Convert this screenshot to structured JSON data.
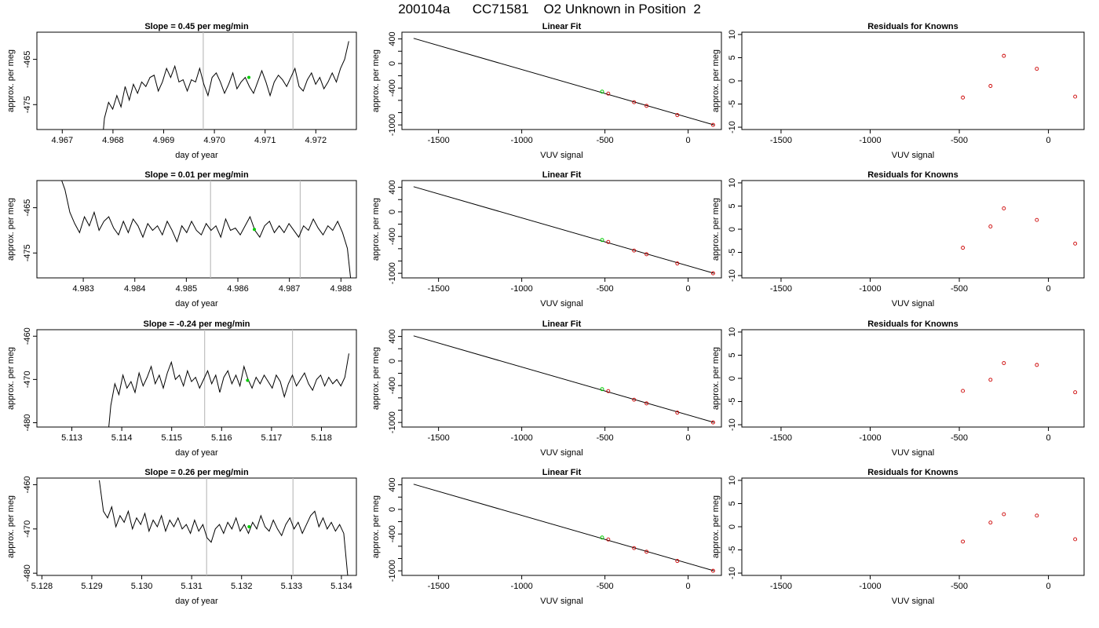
{
  "figure": {
    "title": "200104a      CC71581    O2 Unknown in Position  2"
  },
  "panel_titles": {
    "linear_fit": "Linear Fit",
    "residuals": "Residuals for Knowns"
  },
  "axis_labels": {
    "time_x": "day of year",
    "per_meg_y": "approx. per meg",
    "vuv_x": "VUV signal"
  },
  "colors": {
    "trace": "#000000",
    "guide_lines": "#bebebe",
    "unknown_point": "#00cc00",
    "known_points": "#cc0000"
  },
  "chart_data": [
    {
      "type": "line",
      "row": 1,
      "panel": "time_series",
      "title": "Slope =  0.45  per meg/min",
      "xlabel": "day of year",
      "ylabel": "approx. per meg",
      "xlim": [
        4.9665,
        4.9728
      ],
      "ylim": [
        -480.5,
        -459.0
      ],
      "xticks": [
        4.967,
        4.968,
        4.969,
        4.97,
        4.971,
        4.972
      ],
      "yticks": [
        -475,
        -465
      ],
      "xticklabels": [
        "4.967",
        "4.968",
        "4.969",
        "4.970",
        "4.971",
        "4.972"
      ],
      "yticklabels": [
        "-475",
        "-465"
      ],
      "vlines": [
        4.96978,
        4.97155
      ],
      "trace_x_range": [
        4.96775,
        4.97265
      ],
      "trace_y_values": [
        -488.0,
        -478.0,
        -474.5,
        -476.0,
        -473.0,
        -475.5,
        -471.0,
        -474.0,
        -470.5,
        -472.5,
        -470.0,
        -471.0,
        -469.0,
        -468.5,
        -472.0,
        -470.0,
        -467.0,
        -469.0,
        -466.5,
        -470.0,
        -469.5,
        -472.0,
        -469.5,
        -470.0,
        -467.0,
        -470.5,
        -473.0,
        -469.0,
        -468.0,
        -470.0,
        -472.5,
        -470.5,
        -468.0,
        -471.5,
        -470.0,
        -469.0,
        -471.0,
        -472.5,
        -470.0,
        -467.5,
        -470.0,
        -473.0,
        -470.0,
        -468.5,
        -469.5,
        -471.0,
        -469.0,
        -467.0,
        -471.0,
        -472.0,
        -469.5,
        -468.0,
        -470.5,
        -469.0,
        -471.5,
        -470.0,
        -468.0,
        -470.0,
        -467.0,
        -465.0,
        -461.0
      ],
      "unknown_point": {
        "x": 4.97068,
        "y": -469.0
      }
    },
    {
      "type": "scatter",
      "row": 1,
      "panel": "linear_fit",
      "title": "Linear Fit",
      "xlabel": "VUV signal",
      "ylabel": "approx. per meg",
      "xlim": [
        -1720,
        200
      ],
      "ylim": [
        -1075,
        510
      ],
      "xticks": [
        -1500,
        -1000,
        -500,
        0
      ],
      "yticks": [
        -1000,
        -800,
        -600,
        -400,
        -200,
        0,
        200,
        400
      ],
      "xticklabels": [
        "-1500",
        "-1000",
        "-500",
        "0"
      ],
      "yticklabels": [
        "-1000",
        "",
        "",
        "-400",
        "",
        "0",
        "",
        "400"
      ],
      "fit_line": {
        "x": [
          -1650,
          155
        ],
        "y": [
          410,
          -1000
        ]
      },
      "knowns": {
        "x": [
          -480,
          -325,
          -250,
          -65,
          150
        ],
        "y": [
          -490,
          -630,
          -690,
          -840,
          -1000
        ]
      },
      "unknown": {
        "x": -517,
        "y": -458
      }
    },
    {
      "type": "scatter",
      "row": 1,
      "panel": "residuals",
      "title": "Residuals for Knowns",
      "xlabel": "VUV signal",
      "ylabel": "approx. per meg",
      "xlim": [
        -1720,
        200
      ],
      "ylim": [
        -10.5,
        10.5
      ],
      "xticks": [
        -1500,
        -1000,
        -500,
        0
      ],
      "yticks": [
        -10,
        -5,
        0,
        5,
        10
      ],
      "xticklabels": [
        "-1500",
        "-1000",
        "-500",
        "0"
      ],
      "yticklabels": [
        "-10",
        "-5",
        "0",
        "5",
        "10"
      ],
      "points": {
        "x": [
          -480,
          -325,
          -250,
          -65,
          150
        ],
        "y": [
          -3.6,
          -1.1,
          5.4,
          2.6,
          -3.4
        ]
      }
    },
    {
      "type": "line",
      "row": 2,
      "panel": "time_series",
      "title": "Slope =  0.01  per meg/min",
      "xlabel": "day of year",
      "ylabel": "approx. per meg",
      "xlim": [
        4.9821,
        4.9883
      ],
      "ylim": [
        -480.5,
        -459.0
      ],
      "xticks": [
        4.983,
        4.984,
        4.985,
        4.986,
        4.987,
        4.988
      ],
      "yticks": [
        -475,
        -465
      ],
      "xticklabels": [
        "4.983",
        "4.984",
        "4.985",
        "4.986",
        "4.987",
        "4.988"
      ],
      "yticklabels": [
        "-475",
        "-465"
      ],
      "vlines": [
        4.98547,
        4.98721
      ],
      "trace_x_range": [
        4.98255,
        4.98822
      ],
      "trace_y_values": [
        -458.0,
        -461.0,
        -466.0,
        -468.5,
        -470.5,
        -467.0,
        -469.0,
        -466.0,
        -470.0,
        -468.0,
        -467.0,
        -469.5,
        -471.0,
        -468.0,
        -470.5,
        -467.5,
        -469.0,
        -471.5,
        -468.5,
        -470.0,
        -469.0,
        -471.0,
        -468.0,
        -470.0,
        -472.5,
        -469.0,
        -470.5,
        -468.0,
        -470.0,
        -471.0,
        -468.5,
        -470.0,
        -469.0,
        -471.5,
        -467.5,
        -470.0,
        -469.5,
        -471.0,
        -469.0,
        -467.0,
        -470.0,
        -471.5,
        -469.0,
        -468.0,
        -470.5,
        -469.0,
        -470.5,
        -468.5,
        -470.0,
        -471.5,
        -469.0,
        -470.0,
        -467.5,
        -469.5,
        -471.0,
        -469.0,
        -470.0,
        -468.0,
        -470.5,
        -474.0,
        -484.0
      ],
      "unknown_point": {
        "x": 4.98632,
        "y": -469.8
      }
    },
    {
      "type": "scatter",
      "row": 2,
      "panel": "linear_fit",
      "title": "Linear Fit",
      "xlabel": "VUV signal",
      "ylabel": "approx. per meg",
      "xlim": [
        -1720,
        200
      ],
      "ylim": [
        -1075,
        510
      ],
      "xticks": [
        -1500,
        -1000,
        -500,
        0
      ],
      "yticks": [
        -1000,
        -800,
        -600,
        -400,
        -200,
        0,
        200,
        400
      ],
      "xticklabels": [
        "-1500",
        "-1000",
        "-500",
        "0"
      ],
      "yticklabels": [
        "-1000",
        "",
        "",
        "-400",
        "",
        "0",
        "",
        "400"
      ],
      "fit_line": {
        "x": [
          -1650,
          155
        ],
        "y": [
          410,
          -1000
        ]
      },
      "knowns": {
        "x": [
          -480,
          -325,
          -250,
          -65,
          150
        ],
        "y": [
          -490,
          -630,
          -690,
          -840,
          -1000
        ]
      },
      "unknown": {
        "x": -517,
        "y": -458
      }
    },
    {
      "type": "scatter",
      "row": 2,
      "panel": "residuals",
      "title": "Residuals for Knowns",
      "xlabel": "VUV signal",
      "ylabel": "approx. per meg",
      "xlim": [
        -1720,
        200
      ],
      "ylim": [
        -10.5,
        10.5
      ],
      "xticks": [
        -1500,
        -1000,
        -500,
        0
      ],
      "yticks": [
        -10,
        -5,
        0,
        5,
        10
      ],
      "xticklabels": [
        "-1500",
        "-1000",
        "-500",
        "0"
      ],
      "yticklabels": [
        "-10",
        "-5",
        "0",
        "5",
        "10"
      ],
      "points": {
        "x": [
          -480,
          -325,
          -250,
          -65,
          150
        ],
        "y": [
          -4.0,
          0.6,
          4.5,
          2.0,
          -3.1
        ]
      }
    },
    {
      "type": "line",
      "row": 3,
      "panel": "time_series",
      "title": "Slope =  -0.24  per meg/min",
      "xlabel": "day of year",
      "ylabel": "approx. per meg",
      "xlim": [
        5.1123,
        5.1187
      ],
      "ylim": [
        -481.0,
        -458.5
      ],
      "xticks": [
        5.113,
        5.114,
        5.115,
        5.116,
        5.117,
        5.118
      ],
      "yticks": [
        -480,
        -470,
        -460
      ],
      "xticklabels": [
        "5.113",
        "5.114",
        "5.115",
        "5.116",
        "5.117",
        "5.118"
      ],
      "yticklabels": [
        "-480",
        "-470",
        "-460"
      ],
      "vlines": [
        5.11566,
        5.11742
      ],
      "trace_x_range": [
        5.1137,
        5.11855
      ],
      "trace_y_values": [
        -486.0,
        -476.0,
        -471.0,
        -473.5,
        -469.0,
        -472.0,
        -470.5,
        -473.0,
        -468.5,
        -471.5,
        -469.5,
        -467.0,
        -471.0,
        -469.0,
        -472.0,
        -468.5,
        -466.0,
        -470.0,
        -469.0,
        -471.5,
        -468.0,
        -470.5,
        -469.5,
        -472.0,
        -470.0,
        -468.0,
        -471.0,
        -469.0,
        -473.0,
        -469.5,
        -468.0,
        -471.0,
        -469.0,
        -471.5,
        -467.0,
        -470.0,
        -472.0,
        -469.5,
        -471.0,
        -469.0,
        -470.5,
        -472.0,
        -469.0,
        -470.5,
        -474.0,
        -471.0,
        -469.0,
        -471.5,
        -470.0,
        -468.5,
        -471.0,
        -472.5,
        -470.0,
        -469.0,
        -471.5,
        -469.5,
        -471.0,
        -470.0,
        -471.5,
        -469.5,
        -464.0
      ],
      "unknown_point": {
        "x": 5.11652,
        "y": -470.2
      }
    },
    {
      "type": "scatter",
      "row": 3,
      "panel": "linear_fit",
      "title": "Linear Fit",
      "xlabel": "VUV signal",
      "ylabel": "approx. per meg",
      "xlim": [
        -1720,
        200
      ],
      "ylim": [
        -1075,
        510
      ],
      "xticks": [
        -1500,
        -1000,
        -500,
        0
      ],
      "yticks": [
        -1000,
        -800,
        -600,
        -400,
        -200,
        0,
        200,
        400
      ],
      "xticklabels": [
        "-1500",
        "-1000",
        "-500",
        "0"
      ],
      "yticklabels": [
        "-1000",
        "",
        "",
        "-400",
        "",
        "0",
        "",
        "400"
      ],
      "fit_line": {
        "x": [
          -1650,
          155
        ],
        "y": [
          410,
          -1000
        ]
      },
      "knowns": {
        "x": [
          -480,
          -325,
          -250,
          -65,
          150
        ],
        "y": [
          -490,
          -630,
          -690,
          -840,
          -1000
        ]
      },
      "unknown": {
        "x": -517,
        "y": -458
      }
    },
    {
      "type": "scatter",
      "row": 3,
      "panel": "residuals",
      "title": "Residuals for Knowns",
      "xlabel": "VUV signal",
      "ylabel": "approx. per meg",
      "xlim": [
        -1720,
        200
      ],
      "ylim": [
        -10.5,
        10.5
      ],
      "xticks": [
        -1500,
        -1000,
        -500,
        0
      ],
      "yticks": [
        -10,
        -5,
        0,
        5,
        10
      ],
      "xticklabels": [
        "-1500",
        "-1000",
        "-500",
        "0"
      ],
      "yticklabels": [
        "-10",
        "-5",
        "0",
        "5",
        "10"
      ],
      "points": {
        "x": [
          -480,
          -325,
          -250,
          -65,
          150
        ],
        "y": [
          -2.7,
          -0.3,
          3.3,
          2.9,
          -3.0
        ]
      }
    },
    {
      "type": "line",
      "row": 4,
      "panel": "time_series",
      "title": "Slope =  0.26  per meg/min",
      "xlabel": "day of year",
      "ylabel": "approx. per meg",
      "xlim": [
        5.1279,
        5.1343
      ],
      "ylim": [
        -480.5,
        -458.5
      ],
      "xticks": [
        5.128,
        5.129,
        5.13,
        5.131,
        5.132,
        5.133,
        5.134
      ],
      "yticks": [
        -480,
        -470,
        -460
      ],
      "xticklabels": [
        "5.128",
        "5.129",
        "5.130",
        "5.131",
        "5.132",
        "5.133",
        "5.134"
      ],
      "yticklabels": [
        "-480",
        "-470",
        "-460"
      ],
      "vlines": [
        5.1313,
        5.13303
      ],
      "trace_x_range": [
        5.12915,
        5.13413
      ],
      "trace_y_values": [
        -459.0,
        -466.0,
        -467.5,
        -465.0,
        -469.5,
        -467.0,
        -468.5,
        -466.0,
        -470.0,
        -467.5,
        -469.0,
        -466.5,
        -470.5,
        -468.0,
        -469.5,
        -467.0,
        -470.5,
        -468.0,
        -469.5,
        -467.5,
        -470.0,
        -469.0,
        -471.0,
        -468.0,
        -470.5,
        -469.0,
        -472.0,
        -473.0,
        -470.0,
        -469.0,
        -471.0,
        -468.5,
        -470.0,
        -467.5,
        -470.5,
        -469.0,
        -471.0,
        -468.5,
        -470.0,
        -467.0,
        -469.5,
        -470.5,
        -468.0,
        -470.0,
        -471.5,
        -469.0,
        -467.5,
        -470.0,
        -468.5,
        -471.0,
        -469.0,
        -467.0,
        -466.0,
        -469.5,
        -467.5,
        -470.0,
        -468.5,
        -470.5,
        -469.0,
        -471.0,
        -481.0
      ],
      "unknown_point": {
        "x": 5.13215,
        "y": -469.5
      }
    },
    {
      "type": "scatter",
      "row": 4,
      "panel": "linear_fit",
      "title": "Linear Fit",
      "xlabel": "VUV signal",
      "ylabel": "approx. per meg",
      "xlim": [
        -1720,
        200
      ],
      "ylim": [
        -1075,
        510
      ],
      "xticks": [
        -1500,
        -1000,
        -500,
        0
      ],
      "yticks": [
        -1000,
        -800,
        -600,
        -400,
        -200,
        0,
        200,
        400
      ],
      "xticklabels": [
        "-1500",
        "-1000",
        "-500",
        "0"
      ],
      "yticklabels": [
        "-1000",
        "",
        "",
        "-400",
        "",
        "0",
        "",
        "400"
      ],
      "fit_line": {
        "x": [
          -1650,
          155
        ],
        "y": [
          410,
          -1000
        ]
      },
      "knowns": {
        "x": [
          -480,
          -325,
          -250,
          -65,
          150
        ],
        "y": [
          -490,
          -630,
          -690,
          -840,
          -1000
        ]
      },
      "unknown": {
        "x": -517,
        "y": -458
      }
    },
    {
      "type": "scatter",
      "row": 4,
      "panel": "residuals",
      "title": "Residuals for Knowns",
      "xlabel": "VUV signal",
      "ylabel": "approx. per meg",
      "xlim": [
        -1720,
        200
      ],
      "ylim": [
        -10.5,
        10.5
      ],
      "xticks": [
        -1500,
        -1000,
        -500,
        0
      ],
      "yticks": [
        -10,
        -5,
        0,
        5,
        10
      ],
      "xticklabels": [
        "-1500",
        "-1000",
        "-500",
        "0"
      ],
      "yticklabels": [
        "-10",
        "-5",
        "0",
        "5",
        "10"
      ],
      "points": {
        "x": [
          -480,
          -325,
          -250,
          -65,
          150
        ],
        "y": [
          -3.2,
          0.9,
          2.7,
          2.4,
          -2.7
        ]
      }
    }
  ]
}
